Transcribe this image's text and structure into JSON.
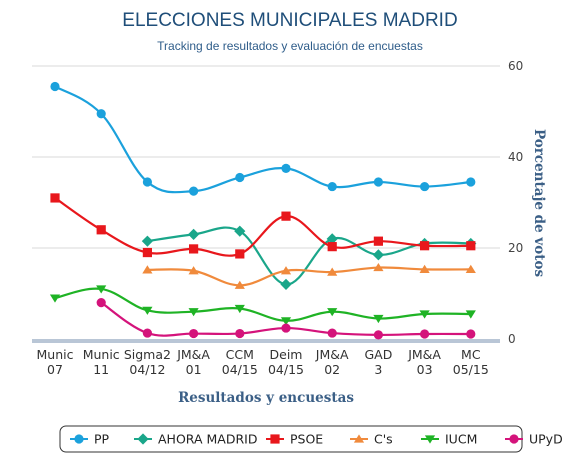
{
  "chart_data": {
    "type": "line",
    "title": "ELECCIONES MUNICIPALES MADRID",
    "subtitle": "Tracking de resultados y evaluación de encuestas",
    "xlabel": "Resultados y encuestas",
    "ylabel": "Porcentaje de votos",
    "ylim": [
      0,
      60
    ],
    "yticks": [
      "0",
      "20",
      "40",
      "60"
    ],
    "categories": [
      [
        "Munic",
        "07"
      ],
      [
        "Munic",
        "11"
      ],
      [
        "Sigma2",
        "04/12"
      ],
      [
        "JM&A",
        "01"
      ],
      [
        "CCM",
        "04/15"
      ],
      [
        "Deim",
        "04/15"
      ],
      [
        "JM&A",
        "02"
      ],
      [
        "GAD",
        "3"
      ],
      [
        "JM&A",
        "03"
      ],
      [
        "MC",
        "05/15"
      ]
    ],
    "legend_position": "bottom",
    "series": [
      {
        "name": "PP",
        "color": "#1ba1dc",
        "marker": "circle",
        "values": [
          55.5,
          49.5,
          34.5,
          32.5,
          35.5,
          37.5,
          33.5,
          34.5,
          33.5,
          34.5
        ]
      },
      {
        "name": "AHORA MADRID",
        "color": "#1aa68a",
        "marker": "diamond",
        "values": [
          null,
          null,
          21.5,
          23,
          23.7,
          12,
          22,
          18.5,
          21,
          21
        ]
      },
      {
        "name": "PSOE",
        "color": "#e8171c",
        "marker": "square",
        "values": [
          31,
          24,
          19,
          19.8,
          18.7,
          27,
          20.3,
          21.5,
          20.5,
          20.5
        ]
      },
      {
        "name": "C's",
        "color": "#f08a3c",
        "marker": "triangle-up",
        "values": [
          null,
          null,
          15.2,
          15,
          11.8,
          15,
          14.7,
          15.7,
          15.3,
          15.3
        ]
      },
      {
        "name": "IUCM",
        "color": "#1fb325",
        "marker": "triangle-down",
        "values": [
          9,
          11,
          6.3,
          6,
          6.7,
          4,
          6,
          4.5,
          5.5,
          5.5
        ]
      },
      {
        "name": "UPyD",
        "color": "#d4137b",
        "marker": "circle",
        "values": [
          null,
          8,
          1.3,
          1.2,
          1.2,
          2.4,
          1.3,
          0.9,
          1.1,
          1.1
        ]
      }
    ]
  }
}
